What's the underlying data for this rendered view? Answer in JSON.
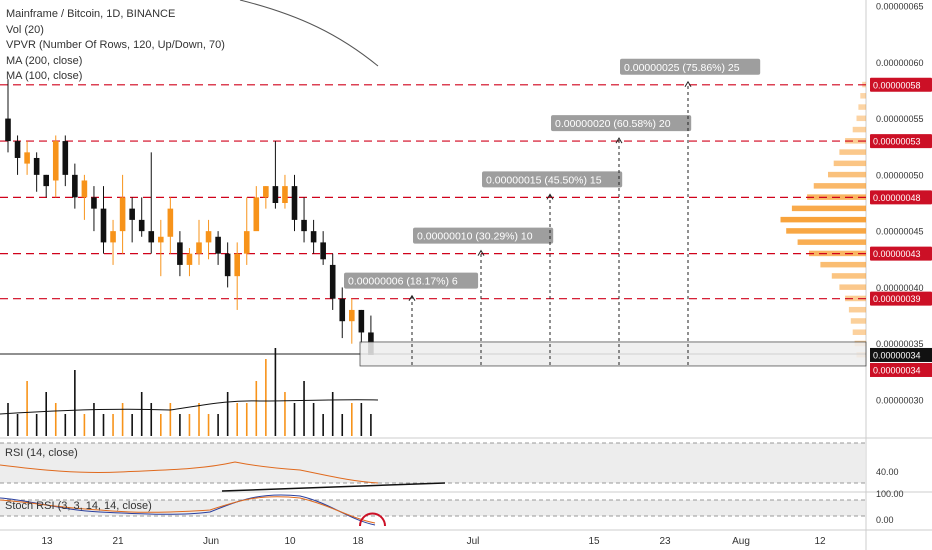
{
  "legend": {
    "title": "Mainframe / Bitcoin, 1D, BINANCE",
    "vol": "Vol (20)",
    "vpvr": "VPVR (Number Of Rows, 120, Up/Down, 70)",
    "ma200": "MA (200, close)",
    "ma100": "MA (100, close)"
  },
  "rsi_label": "RSI (14, close)",
  "stoch_label": "Stoch RSI (3, 3, 14, 14, close)",
  "colors": {
    "up": "#f7931a",
    "down": "#111111",
    "level_line": "#d0021b",
    "badge": "#cc1026",
    "target_box": "#9e9e9e",
    "vpvr": "#f7931a",
    "rsi_line": "#e06a1e",
    "stoch_k": "#2a3f9e",
    "stoch_d": "#e06a1e"
  },
  "chart_data": {
    "type": "candlestick",
    "price_axis": {
      "ticks": [
        "0.00000065",
        "0.00000060",
        "0.00000055",
        "0.00000050",
        "0.00000045",
        "0.00000040",
        "0.00000035",
        "0.00000030"
      ],
      "tick_values": [
        65,
        60,
        55,
        50,
        45,
        40,
        35,
        30
      ],
      "unit_note": "values in 1e-8 BTC"
    },
    "time_axis": {
      "labels": [
        "13",
        "21",
        "Jun",
        "10",
        "18",
        "Jul",
        "15",
        "23",
        "Aug",
        "12"
      ]
    },
    "levels": [
      {
        "label": "0.00000058",
        "value": 58
      },
      {
        "label": "0.00000053",
        "value": 53
      },
      {
        "label": "0.00000048",
        "value": 48
      },
      {
        "label": "0.00000043",
        "value": 43
      },
      {
        "label": "0.00000039",
        "value": 39
      }
    ],
    "current_price": {
      "label": "0.00000034",
      "value": 34
    },
    "targets": [
      {
        "text": "0.00000006 (18.17%) 6",
        "value": 39
      },
      {
        "text": "0.00000010 (30.29%) 10",
        "value": 43
      },
      {
        "text": "0.00000015 (45.50%) 15",
        "value": 48
      },
      {
        "text": "0.00000020 (60.58%) 20",
        "value": 53
      },
      {
        "text": "0.00000025 (75.86%) 25",
        "value": 58
      }
    ],
    "candles": [
      [
        58.5,
        52,
        55,
        53
      ],
      [
        53.5,
        50,
        53,
        51.5
      ],
      [
        53,
        50,
        51,
        52
      ],
      [
        52,
        48.5,
        51.5,
        50
      ],
      [
        50,
        48,
        50,
        49
      ],
      [
        53.5,
        48,
        49.5,
        53
      ],
      [
        53.5,
        49,
        53,
        50
      ],
      [
        51,
        47,
        50,
        48
      ],
      [
        50,
        46,
        48,
        49.5
      ],
      [
        49,
        45,
        48,
        47
      ],
      [
        49,
        43,
        47,
        44
      ],
      [
        46,
        42,
        44,
        45
      ],
      [
        50,
        43,
        45,
        48
      ],
      [
        48,
        44,
        47,
        46
      ],
      [
        48,
        44.5,
        46,
        45
      ],
      [
        52,
        43,
        45,
        44
      ],
      [
        46,
        41,
        44,
        44.5
      ],
      [
        48,
        43,
        44.5,
        47
      ],
      [
        45,
        41,
        44,
        42
      ],
      [
        43.5,
        41,
        42,
        43
      ],
      [
        46,
        42,
        43,
        44
      ],
      [
        46,
        42.5,
        44,
        45
      ],
      [
        45,
        42,
        44.5,
        43
      ],
      [
        44,
        40,
        43,
        41
      ],
      [
        44,
        38,
        41,
        43
      ],
      [
        48,
        42,
        43,
        45
      ],
      [
        49,
        46,
        45,
        48
      ],
      [
        49,
        47,
        48,
        49
      ],
      [
        53,
        47,
        49,
        47.5
      ],
      [
        50,
        47,
        47.5,
        49
      ],
      [
        50,
        45,
        49,
        46
      ],
      [
        48,
        44,
        46,
        45
      ],
      [
        46,
        43,
        45,
        44
      ],
      [
        45,
        42,
        44,
        42.5
      ],
      [
        43,
        38,
        42,
        39
      ],
      [
        40,
        35.5,
        39,
        37
      ],
      [
        39,
        35,
        37,
        38
      ],
      [
        38,
        35,
        38,
        36
      ],
      [
        37.5,
        34.5,
        36,
        34
      ]
    ],
    "volume": [
      3,
      2,
      5,
      2,
      4,
      3,
      2,
      6,
      2,
      3,
      2,
      2,
      3,
      2,
      4,
      3,
      2,
      3,
      2,
      2,
      3,
      2,
      2,
      4,
      3,
      3,
      5,
      7,
      8,
      4,
      3,
      5,
      3,
      2,
      4,
      2,
      3,
      3,
      2
    ],
    "vpvr": [
      {
        "price": 58,
        "w": 4
      },
      {
        "price": 57,
        "w": 6
      },
      {
        "price": 56,
        "w": 8
      },
      {
        "price": 55,
        "w": 10
      },
      {
        "price": 54,
        "w": 14
      },
      {
        "price": 53,
        "w": 22
      },
      {
        "price": 52,
        "w": 28
      },
      {
        "price": 51,
        "w": 34
      },
      {
        "price": 50,
        "w": 40
      },
      {
        "price": 49,
        "w": 55
      },
      {
        "price": 48,
        "w": 62
      },
      {
        "price": 47,
        "w": 78
      },
      {
        "price": 46,
        "w": 90
      },
      {
        "price": 45,
        "w": 84
      },
      {
        "price": 44,
        "w": 72
      },
      {
        "price": 43,
        "w": 60
      },
      {
        "price": 42,
        "w": 48
      },
      {
        "price": 41,
        "w": 36
      },
      {
        "price": 40,
        "w": 28
      },
      {
        "price": 39,
        "w": 22
      },
      {
        "price": 38,
        "w": 18
      },
      {
        "price": 37,
        "w": 16
      },
      {
        "price": 36,
        "w": 14
      },
      {
        "price": 35,
        "w": 12
      },
      {
        "price": 34,
        "w": 10
      }
    ],
    "rsi_axis": {
      "ticks": [
        "40.00"
      ]
    },
    "stoch_axis": {
      "ticks": [
        "100.00",
        "0.00"
      ]
    }
  }
}
